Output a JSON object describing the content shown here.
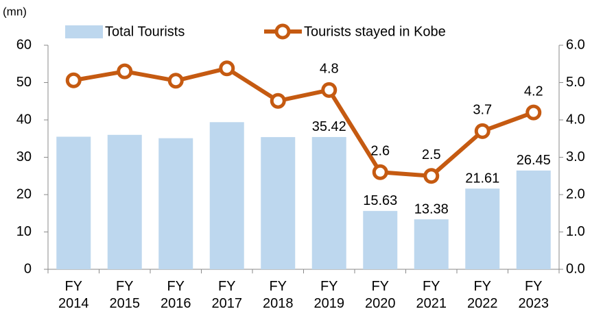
{
  "chart_data": {
    "type": "bar_line",
    "y_unit": "(mn)",
    "categories": [
      "FY 2014",
      "FY 2015",
      "FY 2016",
      "FY 2017",
      "FY 2018",
      "FY 2019",
      "FY 2020",
      "FY 2021",
      "FY 2022",
      "FY 2023"
    ],
    "series": [
      {
        "name": "Total Tourists",
        "type": "bar",
        "color": "#bdd7ee",
        "values": [
          35.5,
          36.0,
          35.1,
          39.4,
          35.4,
          35.42,
          15.63,
          13.38,
          21.61,
          26.45
        ],
        "value_labels": [
          null,
          null,
          null,
          null,
          null,
          "35.42",
          "15.63",
          "13.38",
          "21.61",
          "26.45"
        ]
      },
      {
        "name": "Tourists stayed in Kobe",
        "type": "line",
        "axis": "y2",
        "color": "#c55a11",
        "values": [
          5.06,
          5.3,
          5.05,
          5.38,
          4.51,
          4.8,
          2.6,
          2.5,
          3.7,
          4.2
        ],
        "value_labels": [
          null,
          null,
          null,
          null,
          null,
          "4.8",
          "2.6",
          "2.5",
          "3.7",
          "4.2"
        ]
      }
    ],
    "ylim": [
      0,
      60
    ],
    "yticks": [
      0,
      10,
      20,
      30,
      40,
      50,
      60
    ],
    "y2lim": [
      0,
      6
    ],
    "y2ticks": [
      {
        "value": 0,
        "label": "0.0"
      },
      {
        "value": 1,
        "label": "1.0"
      },
      {
        "value": 2,
        "label": "2.0"
      },
      {
        "value": 3,
        "label": "3.0"
      },
      {
        "value": 4,
        "label": "4.0"
      },
      {
        "value": 5,
        "label": "5.0"
      },
      {
        "value": 6,
        "label": "6.0"
      }
    ],
    "grid": false
  }
}
